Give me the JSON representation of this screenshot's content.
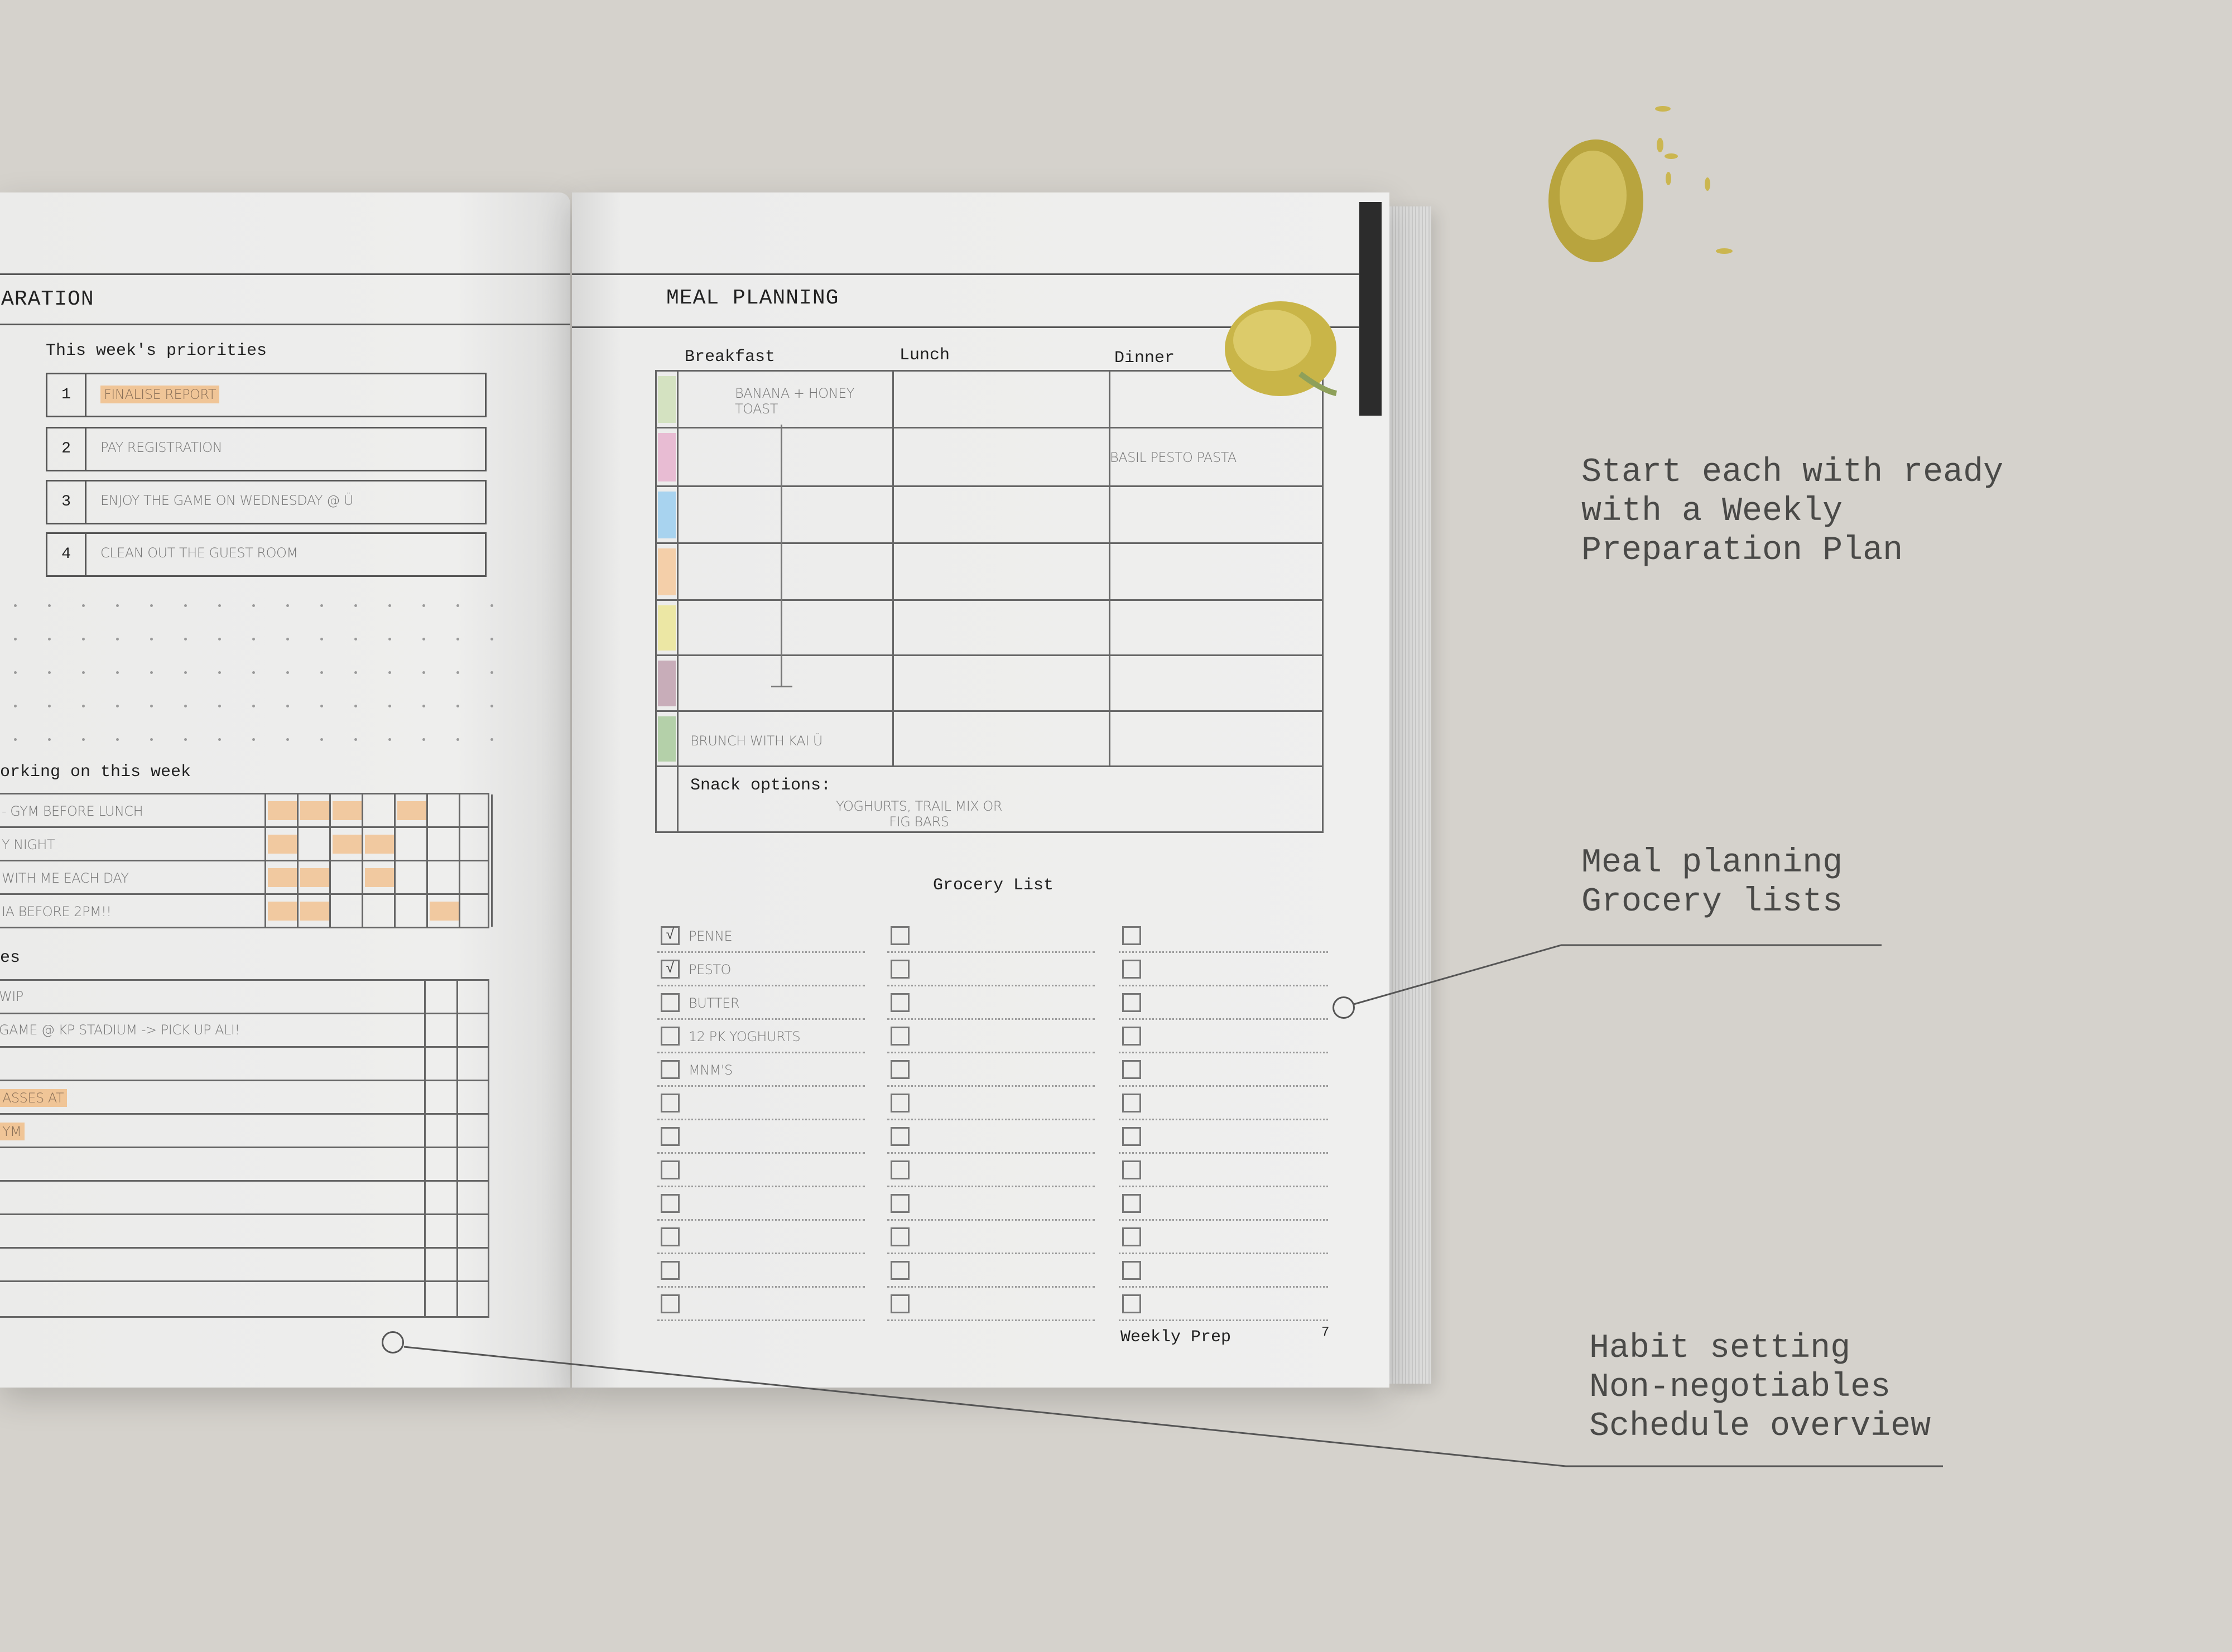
{
  "left_page": {
    "title": "ARATION",
    "priorities_label": "This week's priorities",
    "priorities": [
      {
        "num": "1",
        "text": "FINALISE REPORT",
        "highlight": true
      },
      {
        "num": "2",
        "text": "PAY REGISTRATION",
        "highlight": false
      },
      {
        "num": "3",
        "text": "ENJOY THE GAME ON WEDNESDAY @ Ü",
        "highlight": false
      },
      {
        "num": "4",
        "text": "CLEAN OUT THE GUEST ROOM",
        "highlight": false
      }
    ],
    "habits_label": "orking on this week",
    "habits": [
      {
        "text": "- GYM BEFORE LUNCH",
        "days": [
          1,
          1,
          1,
          0,
          1,
          0,
          0
        ]
      },
      {
        "text": "Y NIGHT",
        "days": [
          1,
          0,
          1,
          1,
          0,
          0,
          0
        ]
      },
      {
        "text": "WITH ME EACH DAY",
        "days": [
          1,
          1,
          0,
          1,
          0,
          0,
          0
        ]
      },
      {
        "text": "IA BEFORE 2PM!!",
        "days": [
          1,
          1,
          0,
          0,
          0,
          1,
          0
        ]
      }
    ],
    "schedule_label": "es",
    "schedule": [
      {
        "text": "WIP",
        "highlight": false
      },
      {
        "text": "GAME @ KP STADIUM -> PICK UP ALI!",
        "highlight": false
      },
      {
        "text": "",
        "highlight": false
      },
      {
        "text": "ASSES AT",
        "highlight": true
      },
      {
        "text": "YM",
        "highlight": true
      },
      {
        "text": "",
        "highlight": false
      },
      {
        "text": "",
        "highlight": false
      },
      {
        "text": "",
        "highlight": false
      },
      {
        "text": "",
        "highlight": false
      },
      {
        "text": "",
        "highlight": false
      }
    ]
  },
  "right_page": {
    "title": "MEAL PLANNING",
    "columns": [
      "Breakfast",
      "Lunch",
      "Dinner"
    ],
    "day_colors": [
      "#d4e2c1",
      "#e8bcd3",
      "#a8d3ef",
      "#f4cfa9",
      "#ece7a4",
      "#c8adb9",
      "#b4d0a9"
    ],
    "meals": [
      [
        "BANANA + HONEY TOAST",
        "",
        ""
      ],
      [
        "",
        "",
        "BASIL PESTO PASTA"
      ],
      [
        "",
        "",
        ""
      ],
      [
        "",
        "",
        ""
      ],
      [
        "",
        "",
        ""
      ],
      [
        "",
        "",
        ""
      ],
      [
        "BRUNCH WITH KAI Ü",
        "",
        ""
      ]
    ],
    "snack_label": "Snack options:",
    "snack_text": "YOGHURTS, TRAIL MIX OR FIG BARS",
    "grocery_title": "Grocery List",
    "grocery": [
      {
        "text": "PENNE",
        "checked": true
      },
      {
        "text": "PESTO",
        "checked": true
      },
      {
        "text": "BUTTER",
        "checked": false
      },
      {
        "text": "12 PK YOGHURTS",
        "checked": false
      },
      {
        "text": "MNM'S",
        "checked": false
      }
    ],
    "footer_label": "Weekly Prep",
    "page_number": "7"
  },
  "callouts": [
    {
      "text": "Start each with ready\nwith a Weekly\nPreparation Plan"
    },
    {
      "text": "Meal planning\nGrocery lists"
    },
    {
      "text": "Habit setting\nNon-negotiables\nSchedule overview"
    }
  ],
  "colors": {
    "background": "#d5d2cc",
    "highlight": "#f1c9a0",
    "flower": "#c9b548"
  }
}
